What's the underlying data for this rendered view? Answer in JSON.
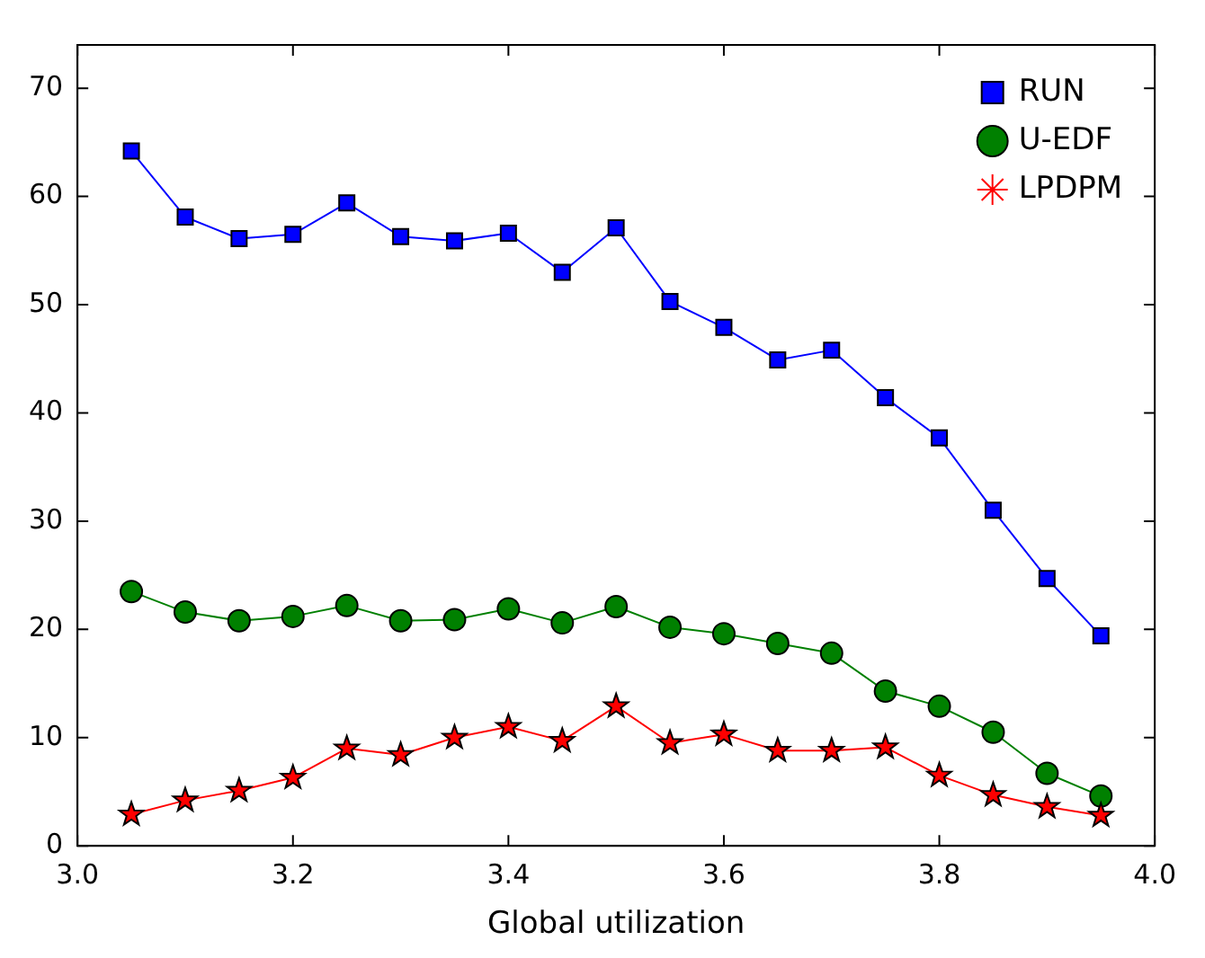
{
  "chart_data": {
    "type": "line",
    "xlabel": "Global utilization",
    "x": [
      3.05,
      3.1,
      3.15,
      3.2,
      3.25,
      3.3,
      3.35,
      3.4,
      3.45,
      3.5,
      3.55,
      3.6,
      3.65,
      3.7,
      3.75,
      3.8,
      3.85,
      3.9,
      3.95
    ],
    "series": [
      {
        "name": "RUN",
        "color": "#0000ff",
        "marker": "square",
        "values": [
          64.2,
          58.1,
          56.1,
          56.5,
          59.4,
          56.3,
          55.9,
          56.6,
          53.0,
          57.1,
          50.3,
          47.9,
          44.9,
          45.8,
          41.4,
          37.7,
          31.0,
          24.7,
          19.4
        ]
      },
      {
        "name": "U-EDF",
        "color": "#008000",
        "marker": "circle",
        "values": [
          23.5,
          21.6,
          20.8,
          21.2,
          22.2,
          20.8,
          20.9,
          21.9,
          20.6,
          22.1,
          20.2,
          19.6,
          18.7,
          17.8,
          14.3,
          12.9,
          10.5,
          6.7,
          4.6
        ]
      },
      {
        "name": "LPDPM",
        "color": "#ff0000",
        "marker": "star",
        "values": [
          2.9,
          4.2,
          5.1,
          6.3,
          9.0,
          8.4,
          10.0,
          11.0,
          9.7,
          12.9,
          9.5,
          10.3,
          8.8,
          8.8,
          9.1,
          6.5,
          4.7,
          3.6,
          2.8
        ]
      }
    ],
    "xlim": [
      3.0,
      4.0
    ],
    "xticks": [
      {
        "value": 3.0,
        "label": "3.0"
      },
      3.2,
      3.4,
      3.6,
      3.8,
      {
        "value": 4.0,
        "label": "4.0"
      }
    ],
    "ylim": [
      0,
      74
    ],
    "yticks": [
      0,
      10,
      20,
      30,
      40,
      50,
      60,
      70
    ],
    "grid": false,
    "legend": "top right",
    "line_style": "solid"
  }
}
